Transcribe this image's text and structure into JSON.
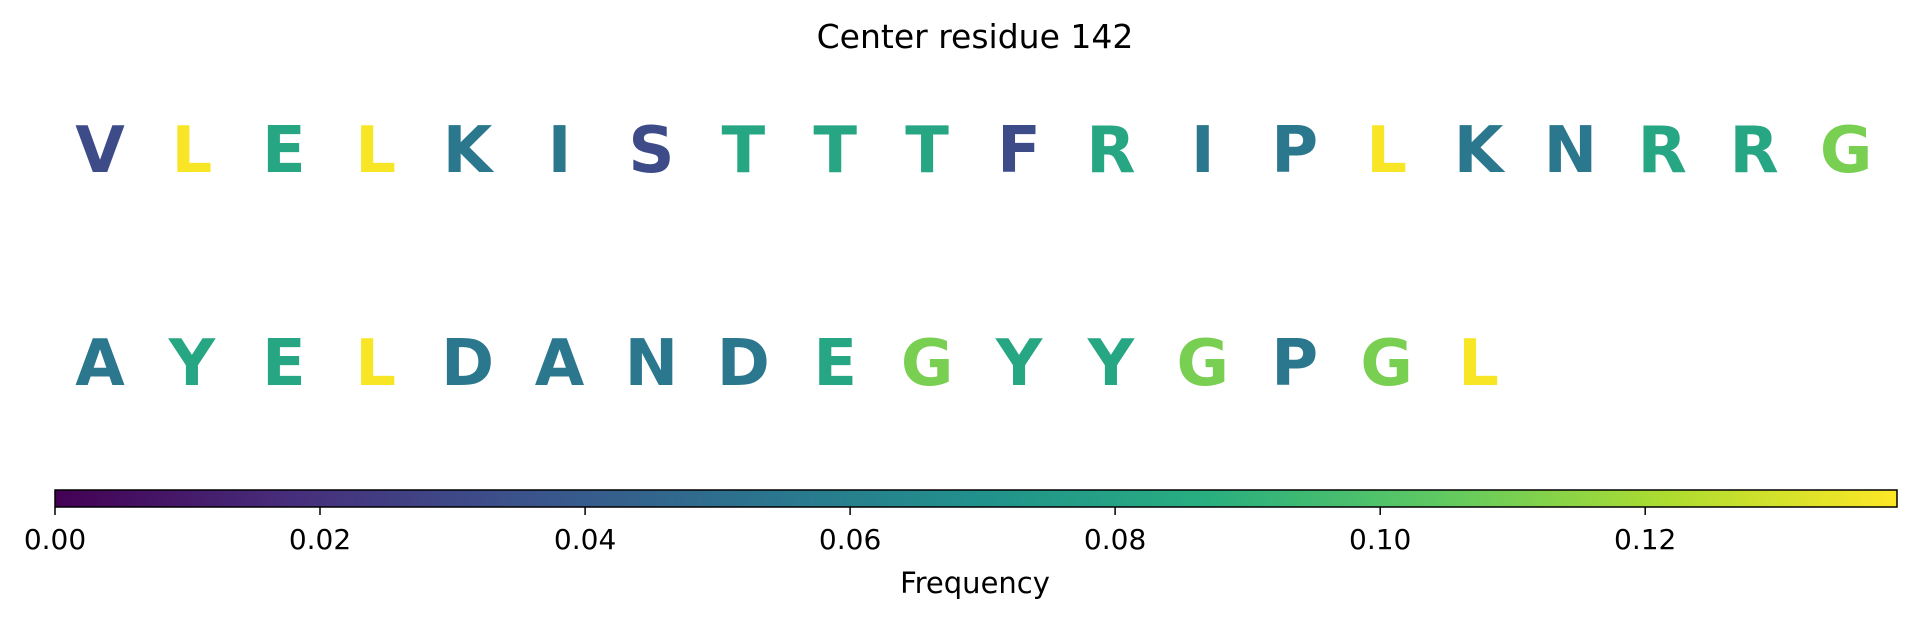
{
  "chart_data": {
    "type": "heatmap",
    "title": "Center residue 142",
    "rows": [
      {
        "residues": [
          {
            "letter": "V",
            "value": 0.032
          },
          {
            "letter": "L",
            "value": 0.138
          },
          {
            "letter": "E",
            "value": 0.082
          },
          {
            "letter": "L",
            "value": 0.138
          },
          {
            "letter": "K",
            "value": 0.055
          },
          {
            "letter": "I",
            "value": 0.055
          },
          {
            "letter": "S",
            "value": 0.032
          },
          {
            "letter": "T",
            "value": 0.082
          },
          {
            "letter": "T",
            "value": 0.082
          },
          {
            "letter": "T",
            "value": 0.082
          },
          {
            "letter": "F",
            "value": 0.032
          },
          {
            "letter": "R",
            "value": 0.082
          },
          {
            "letter": "I",
            "value": 0.055
          },
          {
            "letter": "P",
            "value": 0.055
          },
          {
            "letter": "L",
            "value": 0.138
          },
          {
            "letter": "K",
            "value": 0.055
          },
          {
            "letter": "N",
            "value": 0.055
          },
          {
            "letter": "R",
            "value": 0.082
          },
          {
            "letter": "R",
            "value": 0.082
          },
          {
            "letter": "G",
            "value": 0.11
          }
        ]
      },
      {
        "residues": [
          {
            "letter": "A",
            "value": 0.055
          },
          {
            "letter": "Y",
            "value": 0.082
          },
          {
            "letter": "E",
            "value": 0.082
          },
          {
            "letter": "L",
            "value": 0.138
          },
          {
            "letter": "D",
            "value": 0.055
          },
          {
            "letter": "A",
            "value": 0.055
          },
          {
            "letter": "N",
            "value": 0.055
          },
          {
            "letter": "D",
            "value": 0.055
          },
          {
            "letter": "E",
            "value": 0.082
          },
          {
            "letter": "G",
            "value": 0.11
          },
          {
            "letter": "Y",
            "value": 0.082
          },
          {
            "letter": "Y",
            "value": 0.082
          },
          {
            "letter": "G",
            "value": 0.11
          },
          {
            "letter": "P",
            "value": 0.055
          },
          {
            "letter": "G",
            "value": 0.11
          },
          {
            "letter": "L",
            "value": 0.138
          }
        ]
      }
    ],
    "colorbar": {
      "colormap": "viridis",
      "range": [
        0,
        0.139
      ],
      "ticks": [
        0.0,
        0.02,
        0.04,
        0.06,
        0.08,
        0.1,
        0.12
      ],
      "tick_labels": [
        "0.00",
        "0.02",
        "0.04",
        "0.06",
        "0.08",
        "0.10",
        "0.12"
      ],
      "label": "Frequency",
      "orientation": "horizontal",
      "placement": "bottom"
    }
  }
}
